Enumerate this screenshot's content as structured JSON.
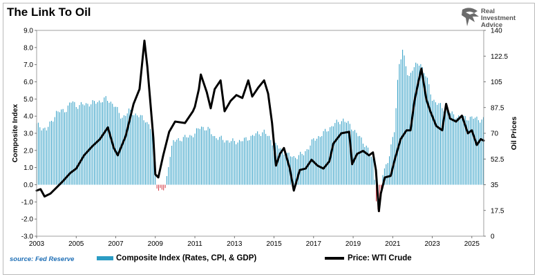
{
  "title": "The Link To Oil",
  "logo": {
    "text": "Real\nInvestment\nAdvice",
    "icon": "eagle-head-icon"
  },
  "source": "source: Fed Reserve",
  "colors": {
    "bar": "#2b9cc4",
    "bar_negative": "#d0343f",
    "line": "#000000"
  },
  "chart_data": {
    "type": "bar+line",
    "xlim": [
      2003,
      2025.6
    ],
    "x_ticks": [
      "2003",
      "2005",
      "2007",
      "2009",
      "2011",
      "2013",
      "2015",
      "2017",
      "2019",
      "2021",
      "2023",
      "2025"
    ],
    "y_left": {
      "label": "Composite Index",
      "range": [
        -3,
        9
      ],
      "ticks": [
        "-3.0",
        "-2.0",
        "-1.0",
        "0.0",
        "1.0",
        "2.0",
        "3.0",
        "4.0",
        "5.0",
        "6.0",
        "7.0",
        "8.0",
        "9.0"
      ]
    },
    "y_right": {
      "label": "Oil Prices",
      "range": [
        0,
        140
      ],
      "ticks": [
        "0",
        "17.5",
        "35",
        "52.5",
        "70",
        "87.5",
        "105",
        "122.5",
        "140"
      ]
    },
    "series": [
      {
        "name": "Composite Index (Rates, CPI, & GDP)",
        "kind": "bar",
        "axis": "left",
        "points": [
          [
            2003.0,
            3.5
          ],
          [
            2003.5,
            3.2
          ],
          [
            2004.0,
            4.2
          ],
          [
            2004.5,
            4.4
          ],
          [
            2004.8,
            4.9
          ],
          [
            2005.0,
            4.6
          ],
          [
            2005.5,
            4.7
          ],
          [
            2006.0,
            4.8
          ],
          [
            2006.5,
            5.0
          ],
          [
            2006.9,
            4.7
          ],
          [
            2007.3,
            3.9
          ],
          [
            2007.7,
            4.3
          ],
          [
            2008.0,
            4.1
          ],
          [
            2008.5,
            3.8
          ],
          [
            2008.9,
            3.0
          ],
          [
            2009.1,
            -0.3
          ],
          [
            2009.5,
            -0.3
          ],
          [
            2009.7,
            1.5
          ],
          [
            2009.9,
            2.5
          ],
          [
            2010.3,
            2.7
          ],
          [
            2010.7,
            2.8
          ],
          [
            2011.0,
            3.0
          ],
          [
            2011.3,
            3.4
          ],
          [
            2011.7,
            3.2
          ],
          [
            2012.0,
            2.8
          ],
          [
            2012.5,
            2.6
          ],
          [
            2013.0,
            2.5
          ],
          [
            2013.5,
            2.6
          ],
          [
            2014.0,
            2.9
          ],
          [
            2014.5,
            3.1
          ],
          [
            2014.9,
            2.5
          ],
          [
            2015.2,
            2.2
          ],
          [
            2015.6,
            1.8
          ],
          [
            2016.0,
            1.6
          ],
          [
            2016.5,
            1.8
          ],
          [
            2017.0,
            2.6
          ],
          [
            2017.5,
            3.0
          ],
          [
            2018.0,
            3.5
          ],
          [
            2018.5,
            3.8
          ],
          [
            2018.9,
            3.4
          ],
          [
            2019.3,
            2.8
          ],
          [
            2019.7,
            2.2
          ],
          [
            2020.0,
            1.4
          ],
          [
            2020.2,
            -1.2
          ],
          [
            2020.35,
            -1.8
          ],
          [
            2020.5,
            0.6
          ],
          [
            2020.8,
            1.6
          ],
          [
            2021.1,
            3.2
          ],
          [
            2021.3,
            7.0
          ],
          [
            2021.5,
            7.8
          ],
          [
            2021.8,
            6.2
          ],
          [
            2022.0,
            6.8
          ],
          [
            2022.4,
            7.1
          ],
          [
            2022.7,
            6.3
          ],
          [
            2023.0,
            5.0
          ],
          [
            2023.5,
            4.5
          ],
          [
            2024.0,
            4.1
          ],
          [
            2024.5,
            3.9
          ],
          [
            2025.0,
            3.9
          ],
          [
            2025.5,
            3.8
          ]
        ]
      },
      {
        "name": "Price: WTI Crude",
        "kind": "line",
        "axis": "right",
        "points": [
          [
            2003.0,
            31
          ],
          [
            2003.2,
            32
          ],
          [
            2003.4,
            27
          ],
          [
            2003.7,
            29
          ],
          [
            2004.0,
            33
          ],
          [
            2004.3,
            37
          ],
          [
            2004.7,
            43
          ],
          [
            2005.0,
            46
          ],
          [
            2005.4,
            55
          ],
          [
            2005.8,
            61
          ],
          [
            2006.2,
            66
          ],
          [
            2006.6,
            74
          ],
          [
            2006.9,
            60
          ],
          [
            2007.1,
            55
          ],
          [
            2007.5,
            68
          ],
          [
            2007.9,
            90
          ],
          [
            2008.2,
            100
          ],
          [
            2008.45,
            133
          ],
          [
            2008.6,
            115
          ],
          [
            2008.9,
            67
          ],
          [
            2009.0,
            42
          ],
          [
            2009.15,
            40
          ],
          [
            2009.4,
            55
          ],
          [
            2009.7,
            71
          ],
          [
            2010.0,
            78
          ],
          [
            2010.5,
            77
          ],
          [
            2010.9,
            85
          ],
          [
            2011.0,
            88
          ],
          [
            2011.2,
            100
          ],
          [
            2011.3,
            110
          ],
          [
            2011.6,
            98
          ],
          [
            2011.8,
            87
          ],
          [
            2012.0,
            100
          ],
          [
            2012.3,
            106
          ],
          [
            2012.5,
            85
          ],
          [
            2012.8,
            92
          ],
          [
            2013.1,
            96
          ],
          [
            2013.4,
            94
          ],
          [
            2013.7,
            106
          ],
          [
            2013.9,
            95
          ],
          [
            2014.2,
            101
          ],
          [
            2014.5,
            106
          ],
          [
            2014.7,
            97
          ],
          [
            2014.9,
            77
          ],
          [
            2015.1,
            48
          ],
          [
            2015.3,
            56
          ],
          [
            2015.5,
            60
          ],
          [
            2015.8,
            46
          ],
          [
            2016.0,
            31
          ],
          [
            2016.3,
            45
          ],
          [
            2016.6,
            46
          ],
          [
            2016.9,
            52
          ],
          [
            2017.2,
            48
          ],
          [
            2017.5,
            46
          ],
          [
            2017.8,
            51
          ],
          [
            2018.0,
            63
          ],
          [
            2018.4,
            70
          ],
          [
            2018.8,
            71
          ],
          [
            2018.95,
            49
          ],
          [
            2019.2,
            56
          ],
          [
            2019.5,
            58
          ],
          [
            2019.8,
            55
          ],
          [
            2020.0,
            57
          ],
          [
            2020.15,
            45
          ],
          [
            2020.3,
            17
          ],
          [
            2020.4,
            29
          ],
          [
            2020.6,
            40
          ],
          [
            2020.9,
            41
          ],
          [
            2021.1,
            52
          ],
          [
            2021.4,
            66
          ],
          [
            2021.7,
            72
          ],
          [
            2021.9,
            72
          ],
          [
            2022.1,
            92
          ],
          [
            2022.3,
            105
          ],
          [
            2022.45,
            114
          ],
          [
            2022.7,
            93
          ],
          [
            2022.9,
            85
          ],
          [
            2023.2,
            75
          ],
          [
            2023.5,
            72
          ],
          [
            2023.7,
            90
          ],
          [
            2023.9,
            80
          ],
          [
            2024.2,
            78
          ],
          [
            2024.5,
            82
          ],
          [
            2024.8,
            70
          ],
          [
            2025.0,
            72
          ],
          [
            2025.25,
            62
          ],
          [
            2025.45,
            66
          ],
          [
            2025.6,
            65
          ]
        ]
      }
    ],
    "legend": {
      "placement": "bottom-center"
    }
  }
}
